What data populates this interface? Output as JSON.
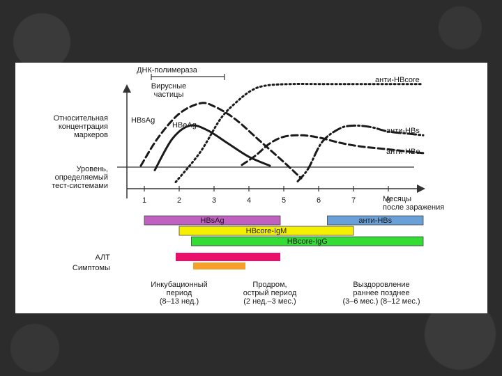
{
  "chart_data": {
    "type": "line",
    "title": "",
    "xlabel": "Месяцы после заражения",
    "ylabel_lines": [
      "Относительная",
      "концентрация",
      "маркеров"
    ],
    "threshold_label_lines": [
      "Уровень,",
      "определяемый",
      "тест-системами"
    ],
    "xlim": [
      0.5,
      9
    ],
    "ylim": [
      -3,
      12
    ],
    "threshold_y": 0,
    "x_ticks": [
      1,
      2,
      3,
      4,
      5,
      6,
      7,
      8
    ],
    "dna_label": "ДНК-полимераза",
    "virus_label_lines": [
      "Вирусные",
      "частицы"
    ],
    "dna_range": [
      1.2,
      3.3
    ],
    "series": [
      {
        "name": "HBsAg",
        "style": "dash",
        "x": [
          0.9,
          1.4,
          2.0,
          2.6,
          3.0,
          3.6,
          4.3,
          5.0,
          5.5
        ],
        "y": [
          0.0,
          3.8,
          7.0,
          8.4,
          8.0,
          6.3,
          3.4,
          0.5,
          -1.7
        ]
      },
      {
        "name": "HBeAg",
        "style": "solid",
        "x": [
          1.3,
          1.8,
          2.3,
          2.8,
          3.4,
          4.0,
          4.6
        ],
        "y": [
          -0.6,
          3.6,
          5.4,
          4.8,
          3.0,
          1.2,
          0.0
        ]
      },
      {
        "name": "анти-HBcore",
        "style": "dot",
        "x": [
          1.9,
          2.6,
          3.2,
          3.7,
          4.1,
          4.5,
          5.2,
          6.0,
          7.0,
          8.0,
          9.0
        ],
        "y": [
          -2.2,
          1.8,
          6.4,
          8.8,
          10.2,
          10.8,
          11.0,
          11.0,
          11.0,
          11.0,
          11.0
        ]
      },
      {
        "name": "анти-HBs",
        "style": "dashdot",
        "x": [
          5.4,
          5.7,
          6.1,
          6.6,
          7.0,
          7.5,
          8.0,
          8.6,
          9.0
        ],
        "y": [
          -2.1,
          -0.4,
          3.2,
          5.0,
          5.4,
          5.2,
          4.6,
          4.3,
          4.1
        ]
      },
      {
        "name": "анти-HBe",
        "style": "dash",
        "x": [
          3.8,
          4.2,
          4.6,
          5.0,
          5.5,
          6.0,
          6.6,
          7.2,
          8.0,
          9.0
        ],
        "y": [
          0.1,
          1.4,
          3.0,
          3.9,
          4.1,
          3.8,
          3.1,
          2.6,
          2.2,
          1.7
        ]
      }
    ]
  },
  "series_labels": {
    "hbsag": "HBsAg",
    "hbeag": "HBeAg",
    "anti_hbcore": "анти-HBcore",
    "anti_hbs": "анти-HBs",
    "anti_hbe": "анти-HBe"
  },
  "bars": [
    {
      "label": "HBsAg",
      "start": 1.0,
      "end": 4.9,
      "color": "#c060c0",
      "row": 0
    },
    {
      "label": "анти-HBs",
      "start": 6.25,
      "end": 9.0,
      "color": "#6aa0d8",
      "row": 0
    },
    {
      "label": "HBcore-IgM",
      "start": 2.0,
      "end": 7.0,
      "color": "#f5f000",
      "row": 1
    },
    {
      "label": "HBcore-IgG",
      "start": 2.35,
      "end": 9.0,
      "color": "#33dd33",
      "row": 2
    }
  ],
  "alt": {
    "label": "АЛТ",
    "start": 1.9,
    "end": 4.9,
    "color": "#e8106a"
  },
  "symptoms": {
    "label": "Симптомы",
    "start": 2.4,
    "end": 3.9,
    "color": "#f5a02a"
  },
  "periods": [
    {
      "lines": [
        "Инкубационный",
        "период",
        "(8–13 нед.)"
      ],
      "x": 2.0
    },
    {
      "lines": [
        "Продром,",
        "острый период",
        "(2 нед.–3 мес.)"
      ],
      "x": 4.6
    },
    {
      "lines": [
        "Выздоровление",
        "раннее  позднее",
        "(3–6 мес.)    (8–12 мес.)"
      ],
      "x": 7.8
    }
  ]
}
